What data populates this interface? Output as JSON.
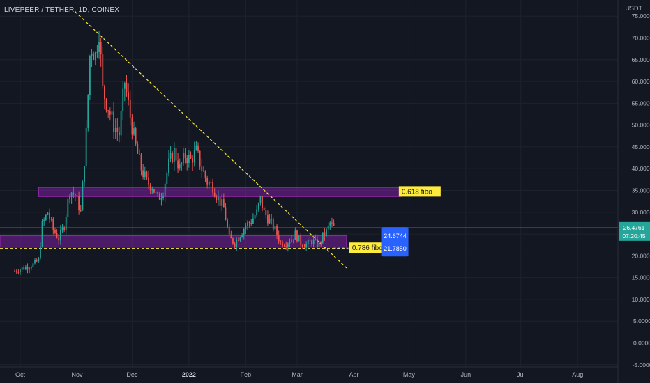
{
  "header": {
    "symbol_title": "LIVEPEER / TETHER, 1D, COINEX",
    "unit": "USDT"
  },
  "colors": {
    "background": "#131722",
    "grid": "#1e222d",
    "up": "#26a69a",
    "down": "#ef5350",
    "zone": "#7b1fa2",
    "trendline": "#ffeb3b",
    "badge_blue": "#2962ff",
    "price_tag": "#26a69a"
  },
  "chart_data": {
    "type": "candlestick",
    "title": "LIVEPEER / TETHER, 1D, COINEX",
    "ylabel": "USDT",
    "ylim": [
      -5,
      75
    ],
    "y_ticks": [
      "75.0000",
      "70.0000",
      "65.0000",
      "60.0000",
      "55.0000",
      "50.0000",
      "45.0000",
      "40.0000",
      "35.0000",
      "30.0000",
      "25.0000",
      "20.0000",
      "15.0000",
      "10.0000",
      "5.0000",
      "0.0000",
      "-5.0000"
    ],
    "x_tick_labels": [
      "Oct",
      "Nov",
      "Dec",
      "2022",
      "Feb",
      "Mar",
      "Apr",
      "May",
      "Jun",
      "Jul",
      "Aug"
    ],
    "x_ticks": [
      "2021-10-01",
      "2021-11-01",
      "2021-12-01",
      "2022-01-01",
      "2022-02-01",
      "2022-03-01",
      "2022-04-01",
      "2022-05-01",
      "2022-06-01",
      "2022-07-01",
      "2022-08-01"
    ],
    "grid": true,
    "close_path": [
      [
        "2021-09-28",
        16.5
      ],
      [
        "2021-10-05",
        17.5
      ],
      [
        "2021-10-08",
        18.0
      ],
      [
        "2021-10-11",
        19.0
      ],
      [
        "2021-10-13",
        27.0
      ],
      [
        "2021-10-16",
        30.0
      ],
      [
        "2021-10-19",
        26.0
      ],
      [
        "2021-10-22",
        24.0
      ],
      [
        "2021-10-25",
        27.0
      ],
      [
        "2021-10-28",
        35.0
      ],
      [
        "2021-10-31",
        34.0
      ],
      [
        "2021-11-03",
        30.0
      ],
      [
        "2021-11-06",
        48.0
      ],
      [
        "2021-11-08",
        66.0
      ],
      [
        "2021-11-09",
        68.0
      ],
      [
        "2021-11-11",
        66.0
      ],
      [
        "2021-11-13",
        72.0
      ],
      [
        "2021-11-15",
        58.0
      ],
      [
        "2021-11-18",
        54.0
      ],
      [
        "2021-11-21",
        50.0
      ],
      [
        "2021-11-24",
        48.0
      ],
      [
        "2021-11-27",
        60.0
      ],
      [
        "2021-11-30",
        52.0
      ],
      [
        "2021-12-03",
        45.0
      ],
      [
        "2021-12-06",
        40.0
      ],
      [
        "2021-12-09",
        37.0
      ],
      [
        "2021-12-12",
        36.0
      ],
      [
        "2021-12-15",
        33.0
      ],
      [
        "2021-12-18",
        35.0
      ],
      [
        "2021-12-21",
        41.0
      ],
      [
        "2021-12-24",
        44.0
      ],
      [
        "2021-12-27",
        40.0
      ],
      [
        "2021-12-30",
        43.0
      ],
      [
        "2022-01-02",
        42.0
      ],
      [
        "2022-01-05",
        44.0
      ],
      [
        "2022-01-08",
        40.0
      ],
      [
        "2022-01-11",
        37.0
      ],
      [
        "2022-01-14",
        36.0
      ],
      [
        "2022-01-17",
        33.0
      ],
      [
        "2022-01-20",
        31.0
      ],
      [
        "2022-01-23",
        24.0
      ],
      [
        "2022-01-26",
        23.0
      ],
      [
        "2022-01-29",
        25.0
      ],
      [
        "2022-02-01",
        27.0
      ],
      [
        "2022-02-04",
        28.0
      ],
      [
        "2022-02-07",
        30.0
      ],
      [
        "2022-02-09",
        33.0
      ],
      [
        "2022-02-11",
        30.0
      ],
      [
        "2022-02-14",
        28.0
      ],
      [
        "2022-02-17",
        26.0
      ],
      [
        "2022-02-20",
        23.0
      ],
      [
        "2022-02-23",
        23.0
      ],
      [
        "2022-02-26",
        24.0
      ],
      [
        "2022-02-28",
        25.0
      ],
      [
        "2022-03-03",
        23.0
      ],
      [
        "2022-03-06",
        22.5
      ],
      [
        "2022-03-09",
        23.5
      ],
      [
        "2022-03-11",
        23.0
      ],
      [
        "2022-03-13",
        22.5
      ],
      [
        "2022-03-15",
        24.5
      ],
      [
        "2022-03-17",
        25.5
      ],
      [
        "2022-03-19",
        27.5
      ],
      [
        "2022-03-21",
        26.5
      ]
    ],
    "series": [
      {
        "name": "0.618 fibo",
        "kind": "zone",
        "from": "2021-10-11",
        "to": "2022-04-27",
        "low": 33.6,
        "high": 35.7
      },
      {
        "name": "0.786 fibo",
        "kind": "zone",
        "from": "2021-09-28",
        "to": "2022-03-28",
        "low": 22.0,
        "high": 24.6
      },
      {
        "kind": "trendline",
        "from": [
          "2021-10-31",
          76.0
        ],
        "to": [
          "2022-03-28",
          17.2
        ]
      },
      {
        "kind": "trendline",
        "from": [
          "2021-09-28",
          21.7
        ],
        "to": [
          "2022-03-28",
          21.7
        ]
      }
    ],
    "annotations": [
      {
        "text": "0.618 fibo",
        "date": "2022-04-27",
        "value": 34.7
      },
      {
        "text": "0.786 fibo",
        "date": "2022-03-31",
        "value": 21.78
      }
    ],
    "badges": [
      {
        "text": "24.6744",
        "date": "2022-04-17",
        "value": 24.6744
      },
      {
        "text": "21.7850",
        "date": "2022-04-17",
        "value": 21.785
      }
    ],
    "last_price": {
      "value": 26.4761,
      "label": "26.4761",
      "countdown": "07:20:45"
    }
  }
}
